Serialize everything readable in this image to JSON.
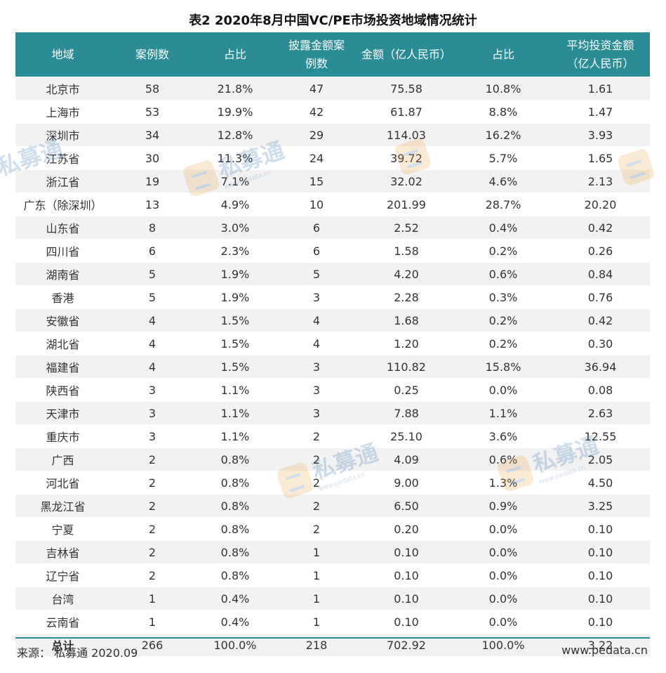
{
  "title": "表2  2020年8月中国VC/PE市场投资地域情况统计",
  "headers": {
    "region": "地域",
    "cases": "案例数",
    "share1": "占比",
    "disclosed_line1": "披露金额案",
    "disclosed_line2": "例数",
    "amount": "金额（亿人民币）",
    "share2": "占比",
    "avg_line1": "平均投资金额",
    "avg_line2": "（亿人民币）"
  },
  "rows": [
    [
      "北京市",
      "58",
      "21.8%",
      "47",
      "75.58",
      "10.8%",
      "1.61"
    ],
    [
      "上海市",
      "53",
      "19.9%",
      "42",
      "61.87",
      "8.8%",
      "1.47"
    ],
    [
      "深圳市",
      "34",
      "12.8%",
      "29",
      "114.03",
      "16.2%",
      "3.93"
    ],
    [
      "江苏省",
      "30",
      "11.3%",
      "24",
      "39.72",
      "5.7%",
      "1.65"
    ],
    [
      "浙江省",
      "19",
      "7.1%",
      "15",
      "32.02",
      "4.6%",
      "2.13"
    ],
    [
      "广东（除深圳）",
      "13",
      "4.9%",
      "10",
      "201.99",
      "28.7%",
      "20.20"
    ],
    [
      "山东省",
      "8",
      "3.0%",
      "6",
      "2.52",
      "0.4%",
      "0.42"
    ],
    [
      "四川省",
      "6",
      "2.3%",
      "6",
      "1.58",
      "0.2%",
      "0.26"
    ],
    [
      "湖南省",
      "5",
      "1.9%",
      "5",
      "4.20",
      "0.6%",
      "0.84"
    ],
    [
      "香港",
      "5",
      "1.9%",
      "3",
      "2.28",
      "0.3%",
      "0.76"
    ],
    [
      "安徽省",
      "4",
      "1.5%",
      "4",
      "1.68",
      "0.2%",
      "0.42"
    ],
    [
      "湖北省",
      "4",
      "1.5%",
      "4",
      "1.20",
      "0.2%",
      "0.30"
    ],
    [
      "福建省",
      "4",
      "1.5%",
      "3",
      "110.82",
      "15.8%",
      "36.94"
    ],
    [
      "陕西省",
      "3",
      "1.1%",
      "3",
      "0.25",
      "0.0%",
      "0.08"
    ],
    [
      "天津市",
      "3",
      "1.1%",
      "3",
      "7.88",
      "1.1%",
      "2.63"
    ],
    [
      "重庆市",
      "3",
      "1.1%",
      "2",
      "25.10",
      "3.6%",
      "12.55"
    ],
    [
      "广西",
      "2",
      "0.8%",
      "2",
      "4.09",
      "0.6%",
      "2.05"
    ],
    [
      "河北省",
      "2",
      "0.8%",
      "2",
      "9.00",
      "1.3%",
      "4.50"
    ],
    [
      "黑龙江省",
      "2",
      "0.8%",
      "2",
      "6.50",
      "0.9%",
      "3.25"
    ],
    [
      "宁夏",
      "2",
      "0.8%",
      "2",
      "0.20",
      "0.0%",
      "0.10"
    ],
    [
      "吉林省",
      "2",
      "0.8%",
      "1",
      "0.10",
      "0.0%",
      "0.10"
    ],
    [
      "辽宁省",
      "2",
      "0.8%",
      "1",
      "0.10",
      "0.0%",
      "0.10"
    ],
    [
      "台湾",
      "1",
      "0.4%",
      "1",
      "0.10",
      "0.0%",
      "0.10"
    ],
    [
      "云南省",
      "1",
      "0.4%",
      "1",
      "0.10",
      "0.0%",
      "0.10"
    ]
  ],
  "total": [
    "总计",
    "266",
    "100.0%",
    "218",
    "702.92",
    "100.0%",
    "3.22"
  ],
  "footer": {
    "source": "来源：  私募通 2020.09",
    "website": "www.pedata.cn"
  },
  "watermark": {
    "text": "私募通",
    "sub": "www.pedata.cn",
    "icon": "pedata-logo-icon"
  },
  "colors": {
    "header_bg": "#2a8c94",
    "stripe": "#f2f2f2"
  }
}
